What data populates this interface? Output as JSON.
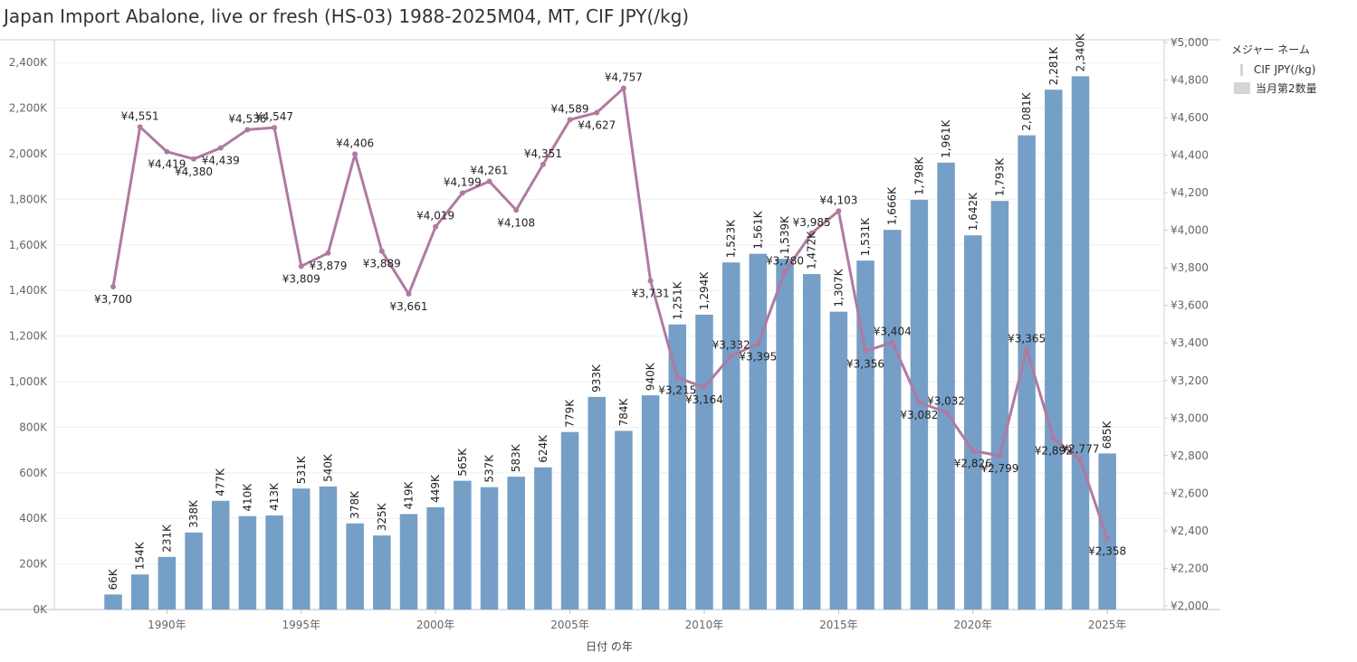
{
  "title": "Japan Import Abalone, live or fresh (HS-03) 1988-2025M04, MT, CIF JPY(/kg)",
  "legend": {
    "title": "メジャー ネーム",
    "items": [
      {
        "label": "CIF JPY(/kg)",
        "swatch": "line"
      },
      {
        "label": "当月第2数量",
        "swatch": "box"
      }
    ]
  },
  "chart_data": {
    "type": "bar",
    "xlabel": "日付 の年",
    "x": [
      1988,
      1989,
      1990,
      1991,
      1992,
      1993,
      1994,
      1995,
      1996,
      1997,
      1998,
      1999,
      2000,
      2001,
      2002,
      2003,
      2004,
      2005,
      2006,
      2007,
      2008,
      2009,
      2010,
      2011,
      2012,
      2013,
      2014,
      2015,
      2016,
      2017,
      2018,
      2019,
      2020,
      2021,
      2022,
      2023,
      2024,
      2025
    ],
    "x_ticks": [
      {
        "year": 1990,
        "label": "1990年"
      },
      {
        "year": 1995,
        "label": "1995年"
      },
      {
        "year": 2000,
        "label": "2000年"
      },
      {
        "year": 2005,
        "label": "2005年"
      },
      {
        "year": 2010,
        "label": "2010年"
      },
      {
        "year": 2015,
        "label": "2015年"
      },
      {
        "year": 2020,
        "label": "2020年"
      },
      {
        "year": 2025,
        "label": "2025年"
      }
    ],
    "left_axis": {
      "range": [
        0,
        2500000
      ],
      "ticks": [
        0,
        200000,
        400000,
        600000,
        800000,
        1000000,
        1200000,
        1400000,
        1600000,
        1800000,
        2000000,
        2200000,
        2400000
      ],
      "tick_labels": [
        "0K",
        "200K",
        "400K",
        "600K",
        "800K",
        "1,000K",
        "1,200K",
        "1,400K",
        "1,600K",
        "1,800K",
        "2,000K",
        "2,200K",
        "2,400K"
      ]
    },
    "right_axis": {
      "range": [
        1980,
        5015
      ],
      "ticks": [
        2000,
        2200,
        2400,
        2600,
        2800,
        3000,
        3200,
        3400,
        3600,
        3800,
        4000,
        4200,
        4400,
        4600,
        4800,
        5000
      ],
      "tick_labels": [
        "¥2,000",
        "¥2,200",
        "¥2,400",
        "¥2,600",
        "¥2,800",
        "¥3,000",
        "¥3,200",
        "¥3,400",
        "¥3,600",
        "¥3,800",
        "¥4,000",
        "¥4,200",
        "¥4,400",
        "¥4,600",
        "¥4,800",
        "¥5,000"
      ]
    },
    "grid": true,
    "series": [
      {
        "name": "当月第2数量",
        "type": "bar",
        "axis": "left",
        "color": "#759fc6",
        "values": [
          66000,
          154000,
          231000,
          338000,
          477000,
          410000,
          413000,
          531000,
          540000,
          378000,
          325000,
          419000,
          449000,
          565000,
          537000,
          583000,
          624000,
          779000,
          933000,
          784000,
          940000,
          1251000,
          1294000,
          1523000,
          1561000,
          1539000,
          1472000,
          1307000,
          1531000,
          1666000,
          1798000,
          1961000,
          1642000,
          1793000,
          2081000,
          2281000,
          2340000,
          685000
        ],
        "labels": [
          "66K",
          "154K",
          "231K",
          "338K",
          "477K",
          "410K",
          "413K",
          "531K",
          "540K",
          "378K",
          "325K",
          "419K",
          "449K",
          "565K",
          "537K",
          "583K",
          "624K",
          "779K",
          "933K",
          "784K",
          "940K",
          "1,251K",
          "1,294K",
          "1,523K",
          "1,561K",
          "1,539K",
          "1,472K",
          "1,307K",
          "1,531K",
          "1,666K",
          "1,798K",
          "1,961K",
          "1,642K",
          "1,793K",
          "2,081K",
          "2,281K",
          "2,340K",
          "685K"
        ]
      },
      {
        "name": "CIF JPY(/kg)",
        "type": "line",
        "axis": "right",
        "color": "#b07aa1",
        "values": [
          3700,
          4551,
          4419,
          4380,
          4439,
          4536,
          4547,
          3809,
          3879,
          4406,
          3889,
          3661,
          4019,
          4199,
          4261,
          4108,
          4351,
          4589,
          4627,
          4757,
          3731,
          3215,
          3164,
          3332,
          3395,
          3780,
          3985,
          4103,
          3356,
          3404,
          3082,
          3032,
          2826,
          2799,
          3365,
          2892,
          2777,
          2358
        ],
        "labels": [
          "¥3,700",
          "¥4,551",
          "¥4,419",
          "¥4,380",
          "¥4,439",
          "¥4,536",
          "¥4,547",
          "¥3,809",
          "¥3,879",
          "¥4,406",
          "¥3,889",
          "¥3,661",
          "¥4,019",
          "¥4,199",
          "¥4,261",
          "¥4,108",
          "¥4,351",
          "¥4,589",
          "¥4,627",
          "¥4,757",
          "¥3,731",
          "¥3,215",
          "¥3,164",
          "¥3,332",
          "¥3,395",
          "¥3,780",
          "¥3,985",
          "¥4,103",
          "¥3,356",
          "¥3,404",
          "¥3,082",
          "¥3,032",
          "¥2,826",
          "¥2,799",
          "¥3,365",
          "¥2,892",
          "¥2,777",
          "¥2,358"
        ]
      }
    ]
  }
}
